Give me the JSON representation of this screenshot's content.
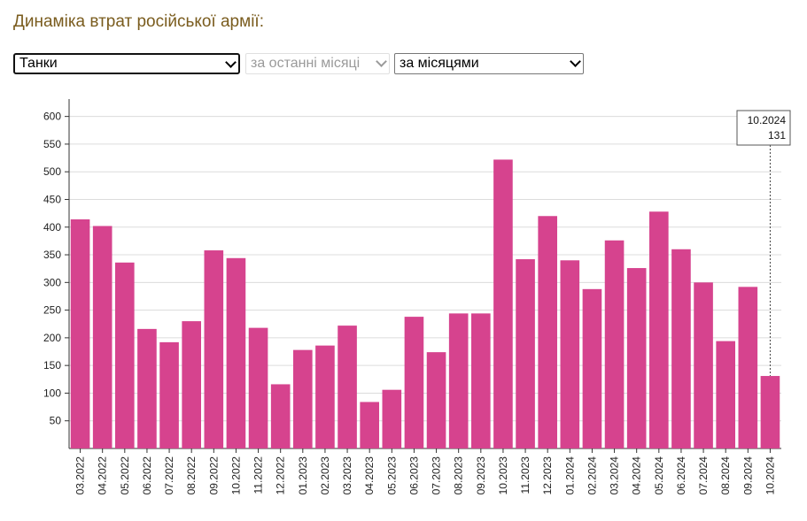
{
  "header": {
    "title": "Динаміка втрат російської армії:"
  },
  "controls": {
    "type_select": "Танки",
    "period_select": "за останні місяці",
    "grouping_select": "за місяцями"
  },
  "colors": {
    "bar": "#d6438e",
    "grid": "#dcdcdc",
    "title": "#7a5c1e"
  },
  "tooltip": {
    "label": "10.2024",
    "value": "131"
  },
  "chart_data": {
    "type": "bar",
    "title": "",
    "xlabel": "",
    "ylabel": "",
    "ylim": [
      0,
      620
    ],
    "yticks": [
      50,
      100,
      150,
      200,
      250,
      300,
      350,
      400,
      450,
      500,
      550,
      600
    ],
    "grid": true,
    "categories": [
      "03.2022",
      "04.2022",
      "05.2022",
      "06.2022",
      "07.2022",
      "08.2022",
      "09.2022",
      "10.2022",
      "11.2022",
      "12.2022",
      "01.2023",
      "02.2023",
      "03.2023",
      "04.2023",
      "05.2023",
      "06.2023",
      "07.2023",
      "08.2023",
      "09.2023",
      "10.2023",
      "11.2023",
      "12.2023",
      "01.2024",
      "02.2024",
      "03.2024",
      "04.2024",
      "05.2024",
      "06.2024",
      "07.2024",
      "08.2024",
      "09.2024",
      "10.2024"
    ],
    "values": [
      414,
      402,
      336,
      216,
      192,
      230,
      358,
      344,
      218,
      116,
      178,
      186,
      222,
      84,
      106,
      238,
      174,
      244,
      244,
      522,
      342,
      420,
      340,
      288,
      376,
      326,
      428,
      360,
      300,
      194,
      292,
      131
    ]
  }
}
